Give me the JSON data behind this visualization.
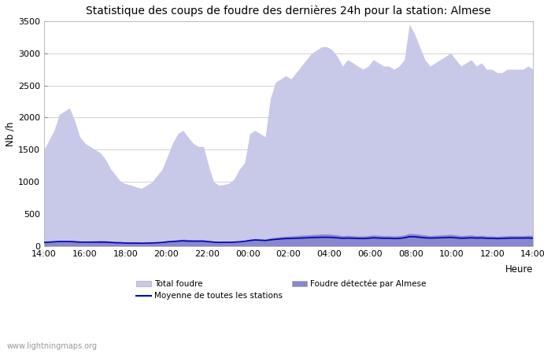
{
  "title": "Statistique des coups de foudre des dernières 24h pour la station: Almese",
  "ylabel": "Nb /h",
  "xlabel": "Heure",
  "watermark": "www.lightningmaps.org",
  "xtick_labels": [
    "14:00",
    "16:00",
    "18:00",
    "20:00",
    "22:00",
    "00:00",
    "02:00",
    "04:00",
    "06:00",
    "08:00",
    "10:00",
    "12:00",
    "14:00"
  ],
  "ylim": [
    0,
    3500
  ],
  "yticks": [
    0,
    500,
    1000,
    1500,
    2000,
    2500,
    3000,
    3500
  ],
  "total_foudre_color": "#c8c8e8",
  "almese_color": "#8888cc",
  "moyenne_color": "#0000bb",
  "background_color": "#ffffff",
  "total_foudre": [
    1500,
    1650,
    1800,
    2050,
    2100,
    2150,
    1950,
    1700,
    1600,
    1550,
    1500,
    1450,
    1350,
    1200,
    1100,
    1000,
    970,
    950,
    920,
    900,
    950,
    1000,
    1100,
    1200,
    1400,
    1600,
    1750,
    1800,
    1700,
    1600,
    1550,
    1550,
    1250,
    1000,
    950,
    960,
    980,
    1050,
    1200,
    1300,
    1750,
    1800,
    1750,
    1700,
    2300,
    2550,
    2600,
    2650,
    2600,
    2700,
    2800,
    2900,
    3000,
    3050,
    3100,
    3100,
    3050,
    2950,
    2800,
    2900,
    2850,
    2800,
    2750,
    2800,
    2900,
    2850,
    2800,
    2800,
    2750,
    2800,
    2900,
    3450,
    3300,
    3100,
    2900,
    2800,
    2850,
    2900,
    2950,
    3000,
    2900,
    2800,
    2850,
    2900,
    2800,
    2850,
    2750,
    2750,
    2700,
    2700,
    2750,
    2750,
    2750,
    2750,
    2800,
    2750
  ],
  "almese": [
    70,
    75,
    80,
    90,
    90,
    90,
    85,
    80,
    80,
    80,
    85,
    90,
    85,
    80,
    75,
    70,
    65,
    60,
    60,
    55,
    55,
    60,
    65,
    70,
    80,
    90,
    100,
    110,
    105,
    100,
    100,
    100,
    90,
    80,
    75,
    75,
    75,
    75,
    80,
    90,
    110,
    120,
    115,
    110,
    130,
    140,
    150,
    155,
    160,
    165,
    170,
    175,
    180,
    185,
    190,
    190,
    185,
    175,
    165,
    170,
    165,
    160,
    160,
    165,
    175,
    170,
    165,
    165,
    160,
    165,
    175,
    200,
    195,
    185,
    175,
    165,
    170,
    175,
    180,
    185,
    175,
    165,
    170,
    175,
    165,
    170,
    160,
    160,
    155,
    160,
    165,
    165,
    165,
    165,
    170,
    165
  ],
  "moyenne": [
    60,
    65,
    70,
    75,
    75,
    75,
    70,
    65,
    65,
    65,
    65,
    65,
    65,
    60,
    55,
    55,
    50,
    50,
    50,
    48,
    50,
    52,
    55,
    60,
    70,
    75,
    80,
    85,
    80,
    80,
    80,
    80,
    72,
    65,
    60,
    62,
    62,
    65,
    70,
    78,
    90,
    98,
    95,
    90,
    100,
    108,
    115,
    120,
    122,
    125,
    128,
    132,
    135,
    138,
    140,
    140,
    138,
    132,
    125,
    128,
    125,
    122,
    120,
    125,
    132,
    128,
    125,
    125,
    120,
    122,
    132,
    150,
    148,
    140,
    132,
    128,
    130,
    132,
    135,
    138,
    132,
    126,
    128,
    132,
    128,
    130,
    125,
    124,
    120,
    122,
    126,
    128,
    128,
    128,
    130,
    126
  ]
}
